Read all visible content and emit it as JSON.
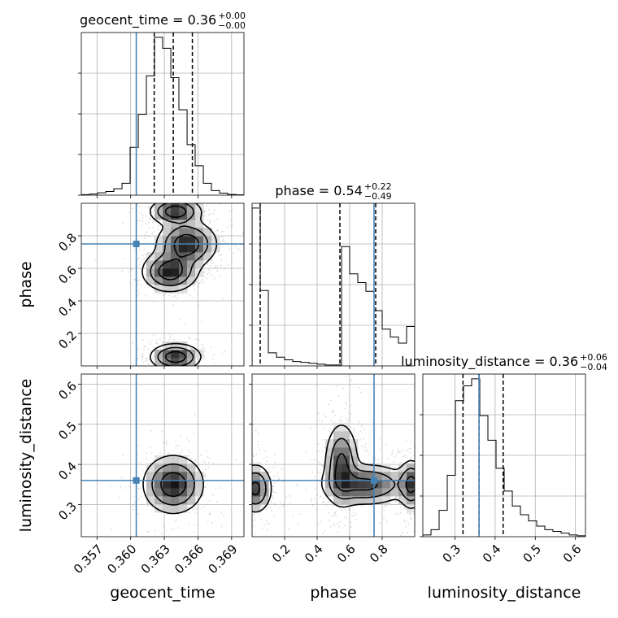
{
  "chart_data": {
    "type": "corner",
    "parameters": [
      "geocent_time",
      "phase",
      "luminosity_distance"
    ],
    "truths": {
      "geocent_time": 0.3605,
      "phase": 0.75,
      "luminosity_distance": 0.36
    },
    "truth_color": "#4682b4",
    "titles": [
      {
        "param": "geocent_time",
        "prefix": "geocent_time = 0.36",
        "sup": "+0.00",
        "sub": "−0.00"
      },
      {
        "param": "phase",
        "prefix": "phase = 0.54",
        "sup": "+0.22",
        "sub": "−0.49"
      },
      {
        "param": "luminosity_distance",
        "prefix": "luminosity_distance = 0.36",
        "sup": "+0.06",
        "sub": "−0.04"
      }
    ],
    "xlabels": {
      "geocent_time": "geocent_time",
      "phase": "phase",
      "luminosity_distance": "luminosity_distance"
    },
    "ylabels": {
      "phase": "phase",
      "luminosity_distance": "luminosity_distance"
    },
    "ranges": {
      "geocent_time": [
        0.3556,
        0.3701
      ],
      "phase": [
        0.0,
        1.0
      ],
      "luminosity_distance": [
        0.22,
        0.625
      ]
    },
    "ticks": {
      "geocent_time": [
        "0.357",
        "0.360",
        "0.363",
        "0.366",
        "0.369"
      ],
      "phase": [
        "0.2",
        "0.4",
        "0.6",
        "0.8"
      ],
      "luminosity_distance": [
        "0.3",
        "0.4",
        "0.5",
        "0.6"
      ]
    },
    "quantiles": {
      "geocent_time": [
        0.3621,
        0.3638,
        0.3655
      ],
      "phase": [
        0.05,
        0.54,
        0.76
      ],
      "luminosity_distance": [
        0.32,
        0.36,
        0.42
      ]
    },
    "histograms": {
      "geocent_time": {
        "edges": [
          0.3556,
          0.35633,
          0.35705,
          0.35778,
          0.3585,
          0.35923,
          0.35995,
          0.36068,
          0.3614,
          0.36213,
          0.36285,
          0.36358,
          0.3643,
          0.36503,
          0.36575,
          0.36648,
          0.3672,
          0.36793,
          0.36865,
          0.36938,
          0.3701
        ],
        "counts": [
          0.5,
          1.2,
          2.5,
          4,
          7,
          13,
          52,
          88,
          130,
          172,
          160,
          128,
          93,
          55,
          32,
          13,
          5,
          2.2,
          0.8,
          0.3
        ]
      },
      "phase": {
        "edges": [
          0.0,
          0.05,
          0.1,
          0.15,
          0.2,
          0.25,
          0.3,
          0.35,
          0.4,
          0.45,
          0.5,
          0.55,
          0.6,
          0.65,
          0.7,
          0.75,
          0.8,
          0.85,
          0.9,
          0.95,
          1.0
        ],
        "counts": [
          180,
          86,
          15,
          10,
          7,
          5,
          4,
          3,
          2,
          1,
          1,
          136,
          105,
          95,
          85,
          63,
          42,
          33,
          26,
          45
        ]
      },
      "luminosity_distance": {
        "edges": [
          0.22,
          0.2403,
          0.2605,
          0.2808,
          0.301,
          0.3213,
          0.3415,
          0.3618,
          0.382,
          0.4023,
          0.4225,
          0.4428,
          0.463,
          0.4833,
          0.5035,
          0.5238,
          0.544,
          0.5643,
          0.5845,
          0.6048,
          0.625
        ],
        "counts": [
          2,
          8,
          30,
          70,
          155,
          172,
          180,
          138,
          110,
          78,
          52,
          35,
          25,
          18,
          12,
          8,
          6,
          4,
          2,
          1
        ]
      }
    },
    "densities": {
      "geocent_time|phase": [
        {
          "cx": 0.364,
          "cy": 0.055,
          "sx": 0.0011,
          "sy": 0.04
        },
        {
          "cx": 0.3635,
          "cy": 0.58,
          "sx": 0.0012,
          "sy": 0.06
        },
        {
          "cx": 0.365,
          "cy": 0.75,
          "sx": 0.0013,
          "sy": 0.07
        },
        {
          "cx": 0.364,
          "cy": 0.95,
          "sx": 0.0011,
          "sy": 0.04
        }
      ],
      "geocent_time|luminosity_distance": [
        {
          "cx": 0.3638,
          "cy": 0.35,
          "sx": 0.0013,
          "sy": 0.035
        }
      ],
      "phase|luminosity_distance": [
        {
          "cx": 0.02,
          "cy": 0.34,
          "sx": 0.05,
          "sy": 0.03
        },
        {
          "cx": 0.55,
          "cy": 0.4,
          "sx": 0.05,
          "sy": 0.05
        },
        {
          "cx": 0.7,
          "cy": 0.35,
          "sx": 0.13,
          "sy": 0.025
        },
        {
          "cx": 0.98,
          "cy": 0.35,
          "sx": 0.04,
          "sy": 0.03
        }
      ]
    },
    "grid": true
  }
}
